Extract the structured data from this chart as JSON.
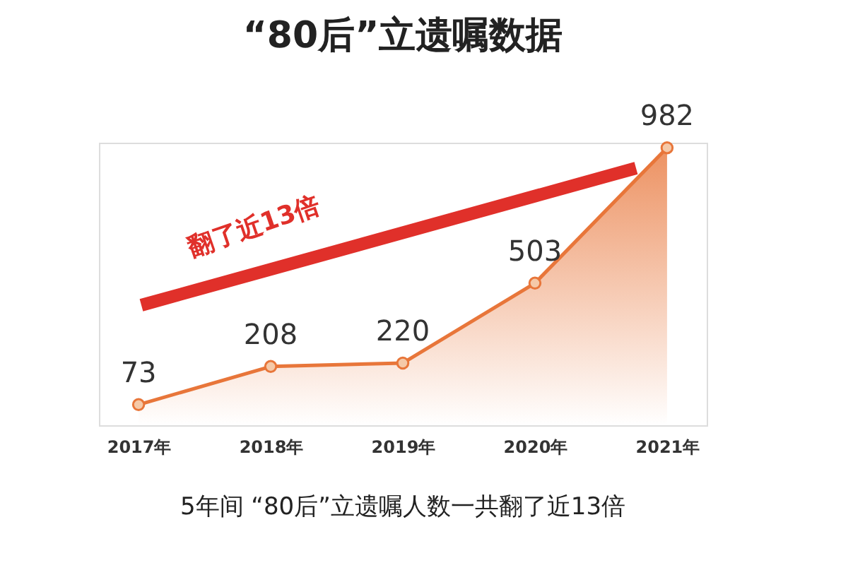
{
  "chart_data": {
    "type": "area",
    "title": "“80后”立遗嘱数据",
    "categories": [
      "2017年",
      "2018年",
      "2019年",
      "2020年",
      "2021年"
    ],
    "series": [
      {
        "color": "#e8763a",
        "values": [
          73,
          208,
          220,
          503,
          982
        ]
      }
    ],
    "data_labels": true,
    "marker": "circle",
    "grid": false,
    "annotations": [
      "翻了近13倍",
      "5年间 “80后”立遗嘱人数一共翻了近13倍"
    ]
  }
}
